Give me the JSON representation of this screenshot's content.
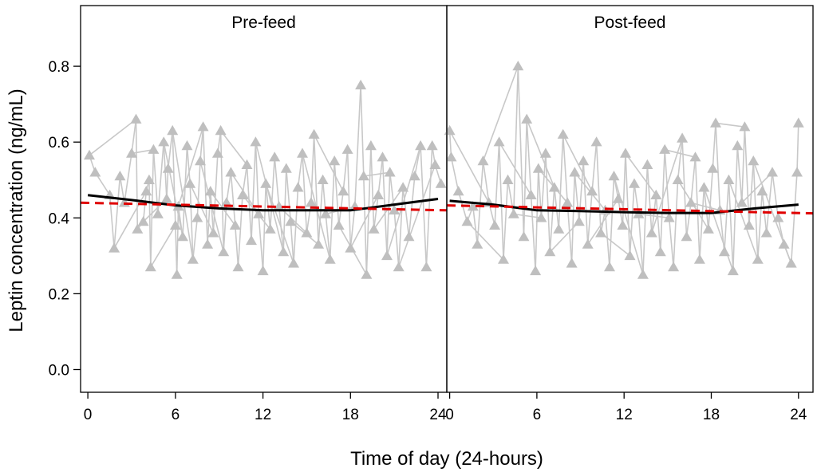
{
  "chart_data": {
    "type": "line",
    "ylabel": "Leptin concentration (ng/mL)",
    "xlabel": "Time of day (24-hours)",
    "ylim": [
      -0.06,
      0.96
    ],
    "yticks": [
      0.0,
      0.2,
      0.4,
      0.6,
      0.8
    ],
    "ytick_labels": [
      "0.0",
      "0.2",
      "0.4",
      "0.6",
      "0.8"
    ],
    "panels": [
      {
        "title": "Pre-feed",
        "xlim": [
          -0.5,
          24.6
        ],
        "xticks": [
          0,
          6,
          12,
          18,
          24
        ],
        "xtick_labels": [
          "0",
          "6",
          "12",
          "18",
          "24"
        ],
        "smooth_curve": {
          "name": "loess fit",
          "color": "#000000",
          "x": [
            0,
            3,
            6,
            9,
            12,
            15,
            18,
            21,
            24
          ],
          "y": [
            0.46,
            0.447,
            0.433,
            0.425,
            0.42,
            0.42,
            0.42,
            0.435,
            0.45
          ]
        },
        "linear_fit": {
          "name": "linear trend",
          "color": "#e00000",
          "x": [
            -0.5,
            24.6
          ],
          "y": [
            0.44,
            0.42
          ]
        },
        "sample_markers": [
          {
            "x": 0.1,
            "y": 0.565
          },
          {
            "x": 0.5,
            "y": 0.52
          },
          {
            "x": 1.5,
            "y": 0.46
          },
          {
            "x": 1.8,
            "y": 0.32
          },
          {
            "x": 2.2,
            "y": 0.51
          },
          {
            "x": 2.5,
            "y": 0.44
          },
          {
            "x": 3.0,
            "y": 0.57
          },
          {
            "x": 3.3,
            "y": 0.66
          },
          {
            "x": 3.4,
            "y": 0.37
          },
          {
            "x": 3.8,
            "y": 0.39
          },
          {
            "x": 4.0,
            "y": 0.47
          },
          {
            "x": 4.2,
            "y": 0.5
          },
          {
            "x": 4.3,
            "y": 0.27
          },
          {
            "x": 4.5,
            "y": 0.58
          },
          {
            "x": 4.8,
            "y": 0.41
          },
          {
            "x": 5.2,
            "y": 0.6
          },
          {
            "x": 5.4,
            "y": 0.45
          },
          {
            "x": 5.5,
            "y": 0.53
          },
          {
            "x": 5.8,
            "y": 0.63
          },
          {
            "x": 6.0,
            "y": 0.38
          },
          {
            "x": 6.1,
            "y": 0.25
          },
          {
            "x": 6.2,
            "y": 0.43
          },
          {
            "x": 6.5,
            "y": 0.35
          },
          {
            "x": 6.8,
            "y": 0.59
          },
          {
            "x": 7.0,
            "y": 0.49
          },
          {
            "x": 7.2,
            "y": 0.29
          },
          {
            "x": 7.5,
            "y": 0.4
          },
          {
            "x": 7.7,
            "y": 0.55
          },
          {
            "x": 7.9,
            "y": 0.64
          },
          {
            "x": 8.2,
            "y": 0.33
          },
          {
            "x": 8.4,
            "y": 0.47
          },
          {
            "x": 8.6,
            "y": 0.36
          },
          {
            "x": 8.9,
            "y": 0.57
          },
          {
            "x": 9.1,
            "y": 0.63
          },
          {
            "x": 9.3,
            "y": 0.31
          },
          {
            "x": 9.5,
            "y": 0.44
          },
          {
            "x": 9.8,
            "y": 0.52
          },
          {
            "x": 10.1,
            "y": 0.38
          },
          {
            "x": 10.3,
            "y": 0.27
          },
          {
            "x": 10.6,
            "y": 0.46
          },
          {
            "x": 10.9,
            "y": 0.54
          },
          {
            "x": 11.2,
            "y": 0.34
          },
          {
            "x": 11.5,
            "y": 0.6
          },
          {
            "x": 11.7,
            "y": 0.41
          },
          {
            "x": 12.0,
            "y": 0.26
          },
          {
            "x": 12.2,
            "y": 0.49
          },
          {
            "x": 12.5,
            "y": 0.37
          },
          {
            "x": 12.8,
            "y": 0.56
          },
          {
            "x": 13.1,
            "y": 0.43
          },
          {
            "x": 13.4,
            "y": 0.31
          },
          {
            "x": 13.6,
            "y": 0.53
          },
          {
            "x": 13.9,
            "y": 0.39
          },
          {
            "x": 14.1,
            "y": 0.28
          },
          {
            "x": 14.4,
            "y": 0.48
          },
          {
            "x": 14.7,
            "y": 0.57
          },
          {
            "x": 15.0,
            "y": 0.36
          },
          {
            "x": 15.3,
            "y": 0.44
          },
          {
            "x": 15.5,
            "y": 0.62
          },
          {
            "x": 15.8,
            "y": 0.33
          },
          {
            "x": 16.1,
            "y": 0.5
          },
          {
            "x": 16.3,
            "y": 0.41
          },
          {
            "x": 16.6,
            "y": 0.29
          },
          {
            "x": 16.9,
            "y": 0.55
          },
          {
            "x": 17.2,
            "y": 0.38
          },
          {
            "x": 17.5,
            "y": 0.47
          },
          {
            "x": 17.8,
            "y": 0.58
          },
          {
            "x": 18.0,
            "y": 0.32
          },
          {
            "x": 18.3,
            "y": 0.43
          },
          {
            "x": 18.7,
            "y": 0.75
          },
          {
            "x": 18.9,
            "y": 0.51
          },
          {
            "x": 19.1,
            "y": 0.25
          },
          {
            "x": 19.4,
            "y": 0.59
          },
          {
            "x": 19.6,
            "y": 0.37
          },
          {
            "x": 19.9,
            "y": 0.46
          },
          {
            "x": 20.2,
            "y": 0.56
          },
          {
            "x": 20.5,
            "y": 0.3
          },
          {
            "x": 20.7,
            "y": 0.52
          },
          {
            "x": 21.0,
            "y": 0.42
          },
          {
            "x": 21.3,
            "y": 0.27
          },
          {
            "x": 21.6,
            "y": 0.48
          },
          {
            "x": 22.0,
            "y": 0.35
          },
          {
            "x": 22.4,
            "y": 0.51
          },
          {
            "x": 22.8,
            "y": 0.59
          },
          {
            "x": 23.2,
            "y": 0.27
          },
          {
            "x": 23.6,
            "y": 0.59
          },
          {
            "x": 23.8,
            "y": 0.54
          },
          {
            "x": 24.2,
            "y": 0.49
          }
        ]
      },
      {
        "title": "Post-feed",
        "xlim": [
          -0.2,
          25.0
        ],
        "xticks": [
          0,
          6,
          12,
          18,
          24
        ],
        "xtick_labels": [
          "0",
          "6",
          "12",
          "18",
          "24"
        ],
        "smooth_curve": {
          "name": "loess fit",
          "color": "#000000",
          "x": [
            0,
            3,
            6,
            9,
            12,
            15,
            18,
            21,
            24
          ],
          "y": [
            0.445,
            0.435,
            0.42,
            0.418,
            0.415,
            0.413,
            0.413,
            0.425,
            0.435
          ]
        },
        "linear_fit": {
          "name": "linear trend",
          "color": "#e00000",
          "x": [
            -0.2,
            25.0
          ],
          "y": [
            0.433,
            0.412
          ]
        },
        "sample_markers": [
          {
            "x": 0.0,
            "y": 0.63
          },
          {
            "x": 0.1,
            "y": 0.56
          },
          {
            "x": 0.6,
            "y": 0.47
          },
          {
            "x": 1.2,
            "y": 0.39
          },
          {
            "x": 1.6,
            "y": 0.43
          },
          {
            "x": 1.9,
            "y": 0.33
          },
          {
            "x": 2.3,
            "y": 0.55
          },
          {
            "x": 2.7,
            "y": 0.44
          },
          {
            "x": 3.1,
            "y": 0.38
          },
          {
            "x": 3.4,
            "y": 0.6
          },
          {
            "x": 3.7,
            "y": 0.29
          },
          {
            "x": 4.0,
            "y": 0.5
          },
          {
            "x": 4.4,
            "y": 0.41
          },
          {
            "x": 4.7,
            "y": 0.8
          },
          {
            "x": 5.1,
            "y": 0.35
          },
          {
            "x": 5.3,
            "y": 0.66
          },
          {
            "x": 5.6,
            "y": 0.46
          },
          {
            "x": 5.9,
            "y": 0.26
          },
          {
            "x": 6.1,
            "y": 0.53
          },
          {
            "x": 6.3,
            "y": 0.4
          },
          {
            "x": 6.6,
            "y": 0.57
          },
          {
            "x": 6.9,
            "y": 0.31
          },
          {
            "x": 7.2,
            "y": 0.48
          },
          {
            "x": 7.5,
            "y": 0.37
          },
          {
            "x": 7.8,
            "y": 0.62
          },
          {
            "x": 8.1,
            "y": 0.44
          },
          {
            "x": 8.4,
            "y": 0.28
          },
          {
            "x": 8.6,
            "y": 0.52
          },
          {
            "x": 8.9,
            "y": 0.39
          },
          {
            "x": 9.2,
            "y": 0.55
          },
          {
            "x": 9.5,
            "y": 0.33
          },
          {
            "x": 9.8,
            "y": 0.47
          },
          {
            "x": 10.1,
            "y": 0.6
          },
          {
            "x": 10.4,
            "y": 0.36
          },
          {
            "x": 10.7,
            "y": 0.42
          },
          {
            "x": 11.0,
            "y": 0.27
          },
          {
            "x": 11.3,
            "y": 0.51
          },
          {
            "x": 11.6,
            "y": 0.45
          },
          {
            "x": 11.9,
            "y": 0.38
          },
          {
            "x": 12.1,
            "y": 0.57
          },
          {
            "x": 12.4,
            "y": 0.3
          },
          {
            "x": 12.7,
            "y": 0.49
          },
          {
            "x": 13.0,
            "y": 0.41
          },
          {
            "x": 13.3,
            "y": 0.25
          },
          {
            "x": 13.6,
            "y": 0.54
          },
          {
            "x": 13.9,
            "y": 0.36
          },
          {
            "x": 14.2,
            "y": 0.46
          },
          {
            "x": 14.5,
            "y": 0.31
          },
          {
            "x": 14.8,
            "y": 0.58
          },
          {
            "x": 15.1,
            "y": 0.4
          },
          {
            "x": 15.4,
            "y": 0.27
          },
          {
            "x": 15.7,
            "y": 0.5
          },
          {
            "x": 16.0,
            "y": 0.61
          },
          {
            "x": 16.3,
            "y": 0.35
          },
          {
            "x": 16.6,
            "y": 0.44
          },
          {
            "x": 16.9,
            "y": 0.56
          },
          {
            "x": 17.2,
            "y": 0.29
          },
          {
            "x": 17.5,
            "y": 0.48
          },
          {
            "x": 17.8,
            "y": 0.37
          },
          {
            "x": 18.1,
            "y": 0.53
          },
          {
            "x": 18.3,
            "y": 0.65
          },
          {
            "x": 18.6,
            "y": 0.42
          },
          {
            "x": 18.9,
            "y": 0.31
          },
          {
            "x": 19.2,
            "y": 0.5
          },
          {
            "x": 19.5,
            "y": 0.26
          },
          {
            "x": 19.8,
            "y": 0.59
          },
          {
            "x": 20.1,
            "y": 0.44
          },
          {
            "x": 20.3,
            "y": 0.64
          },
          {
            "x": 20.6,
            "y": 0.38
          },
          {
            "x": 20.9,
            "y": 0.55
          },
          {
            "x": 21.2,
            "y": 0.29
          },
          {
            "x": 21.5,
            "y": 0.47
          },
          {
            "x": 21.8,
            "y": 0.36
          },
          {
            "x": 22.2,
            "y": 0.52
          },
          {
            "x": 22.6,
            "y": 0.4
          },
          {
            "x": 23.0,
            "y": 0.33
          },
          {
            "x": 23.5,
            "y": 0.28
          },
          {
            "x": 23.9,
            "y": 0.52
          },
          {
            "x": 24.0,
            "y": 0.65
          }
        ]
      }
    ]
  },
  "colors": {
    "markers": "#bfbfbf",
    "connectors": "#c8c8c8",
    "smooth": "#000000",
    "trend": "#e00000",
    "frame": "#000000"
  }
}
